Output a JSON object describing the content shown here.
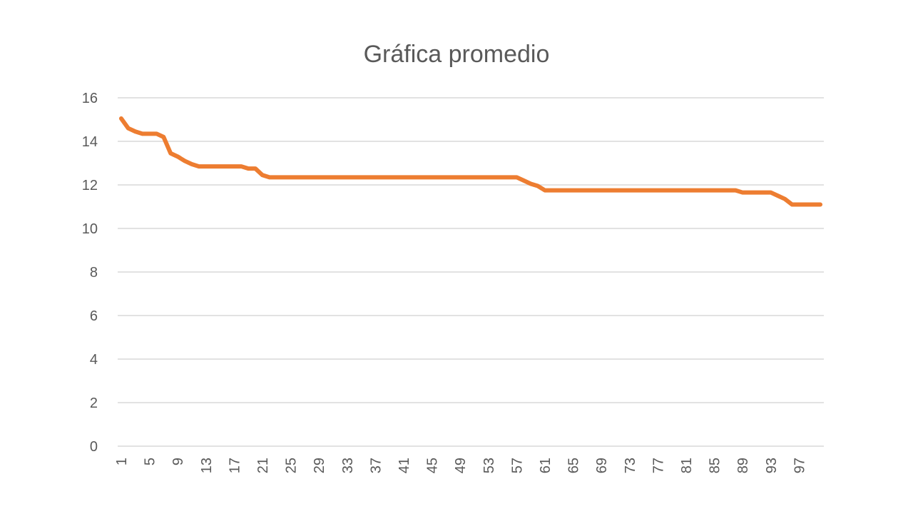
{
  "chart_data": {
    "type": "line",
    "title": "Gráfica promedio",
    "xlabel": "",
    "ylabel": "",
    "x": [
      1,
      2,
      3,
      4,
      5,
      6,
      7,
      8,
      9,
      10,
      11,
      12,
      13,
      14,
      15,
      16,
      17,
      18,
      19,
      20,
      21,
      22,
      23,
      24,
      25,
      26,
      27,
      28,
      29,
      30,
      31,
      32,
      33,
      34,
      35,
      36,
      37,
      38,
      39,
      40,
      41,
      42,
      43,
      44,
      45,
      46,
      47,
      48,
      49,
      50,
      51,
      52,
      53,
      54,
      55,
      56,
      57,
      58,
      59,
      60,
      61,
      62,
      63,
      64,
      65,
      66,
      67,
      68,
      69,
      70,
      71,
      72,
      73,
      74,
      75,
      76,
      77,
      78,
      79,
      80,
      81,
      82,
      83,
      84,
      85,
      86,
      87,
      88,
      89,
      90,
      91,
      92,
      93,
      94,
      95,
      96,
      97,
      98,
      99,
      100
    ],
    "series": [
      {
        "color": "#ed7d31",
        "values": [
          15.05,
          14.6,
          14.45,
          14.35,
          14.35,
          14.35,
          14.2,
          13.45,
          13.3,
          13.1,
          12.95,
          12.85,
          12.85,
          12.85,
          12.85,
          12.85,
          12.85,
          12.85,
          12.75,
          12.75,
          12.45,
          12.35,
          12.35,
          12.35,
          12.35,
          12.35,
          12.35,
          12.35,
          12.35,
          12.35,
          12.35,
          12.35,
          12.35,
          12.35,
          12.35,
          12.35,
          12.35,
          12.35,
          12.35,
          12.35,
          12.35,
          12.35,
          12.35,
          12.35,
          12.35,
          12.35,
          12.35,
          12.35,
          12.35,
          12.35,
          12.35,
          12.35,
          12.35,
          12.35,
          12.35,
          12.35,
          12.35,
          12.2,
          12.05,
          11.95,
          11.75,
          11.75,
          11.75,
          11.75,
          11.75,
          11.75,
          11.75,
          11.75,
          11.75,
          11.75,
          11.75,
          11.75,
          11.75,
          11.75,
          11.75,
          11.75,
          11.75,
          11.75,
          11.75,
          11.75,
          11.75,
          11.75,
          11.75,
          11.75,
          11.75,
          11.75,
          11.75,
          11.75,
          11.65,
          11.65,
          11.65,
          11.65,
          11.65,
          11.5,
          11.35,
          11.1,
          11.1,
          11.1,
          11.1,
          11.1
        ]
      }
    ],
    "x_tick_labels": [
      "1",
      "5",
      "9",
      "13",
      "17",
      "21",
      "25",
      "29",
      "33",
      "37",
      "41",
      "45",
      "49",
      "53",
      "57",
      "61",
      "65",
      "69",
      "73",
      "77",
      "81",
      "85",
      "89",
      "93",
      "97"
    ],
    "y_tick_labels": [
      "0",
      "2",
      "4",
      "6",
      "8",
      "10",
      "12",
      "14",
      "16"
    ],
    "ylim": [
      0,
      16
    ],
    "grid": true,
    "legend": "none"
  }
}
